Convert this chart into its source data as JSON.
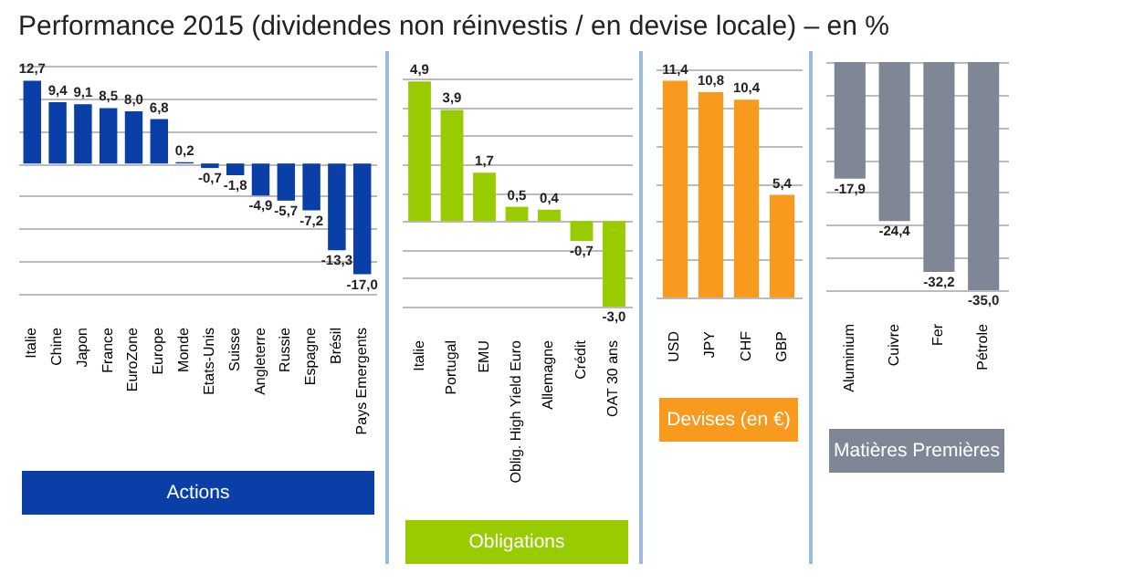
{
  "chart_data": [
    {
      "type": "bar",
      "title": "Performance 2015 (dividendes non réinvestis / en devise locale) – en %",
      "xlabel": "Actions",
      "color": "#0a3fa8",
      "categories": [
        "Italie",
        "Chine",
        "Japon",
        "France",
        "EuroZone",
        "Europe",
        "Monde",
        "Etats-Unis",
        "Suisse",
        "Angleterre",
        "Russie",
        "Espagne",
        "Brésil",
        "Pays Emergents"
      ],
      "values": [
        12.7,
        9.4,
        9.1,
        8.5,
        8.0,
        6.8,
        0.2,
        -0.7,
        -1.8,
        -4.9,
        -5.7,
        -7.2,
        -13.3,
        -17.0
      ],
      "value_labels": [
        "12,7",
        "9,4",
        "9,1",
        "8,5",
        "8,0",
        "6,8",
        "0,2",
        "-0,7",
        "-1,8",
        "-4,9",
        "-5,7",
        "-7,2",
        "-13,3",
        "-17,0"
      ],
      "grid": "y",
      "tick_labels": "x"
    },
    {
      "type": "bar",
      "xlabel": "Obligations",
      "color": "#99cc00",
      "categories": [
        "Italie",
        "Portugal",
        "EMU",
        "Oblig. High Yield Euro",
        "Allemagne",
        "Crédit",
        "OAT 30 ans"
      ],
      "values": [
        4.9,
        3.9,
        1.7,
        0.5,
        0.4,
        -0.7,
        -3.0
      ],
      "value_labels": [
        "4,9",
        "3,9",
        "1,7",
        "0,5",
        "0,4",
        "-0,7",
        "-3,0"
      ],
      "grid": "y",
      "tick_labels": "x"
    },
    {
      "type": "bar",
      "xlabel": "Devises (en €)",
      "color": "#f79a1e",
      "categories": [
        "USD",
        "JPY",
        "CHF",
        "GBP"
      ],
      "values": [
        11.4,
        10.8,
        10.4,
        5.4
      ],
      "value_labels": [
        "11,4",
        "10,8",
        "10,4",
        "5,4"
      ],
      "grid": "y",
      "tick_labels": "x"
    },
    {
      "type": "bar",
      "xlabel": "Matières Premières",
      "color": "#7f8796",
      "categories": [
        "Aluminium",
        "Cuivre",
        "Fer",
        "Pétrole"
      ],
      "values": [
        -17.9,
        -24.4,
        -32.2,
        -35.0
      ],
      "value_labels": [
        "-17,9",
        "-24,4",
        "-32,2",
        "-35,0"
      ],
      "grid": "y",
      "tick_labels": "x"
    }
  ]
}
